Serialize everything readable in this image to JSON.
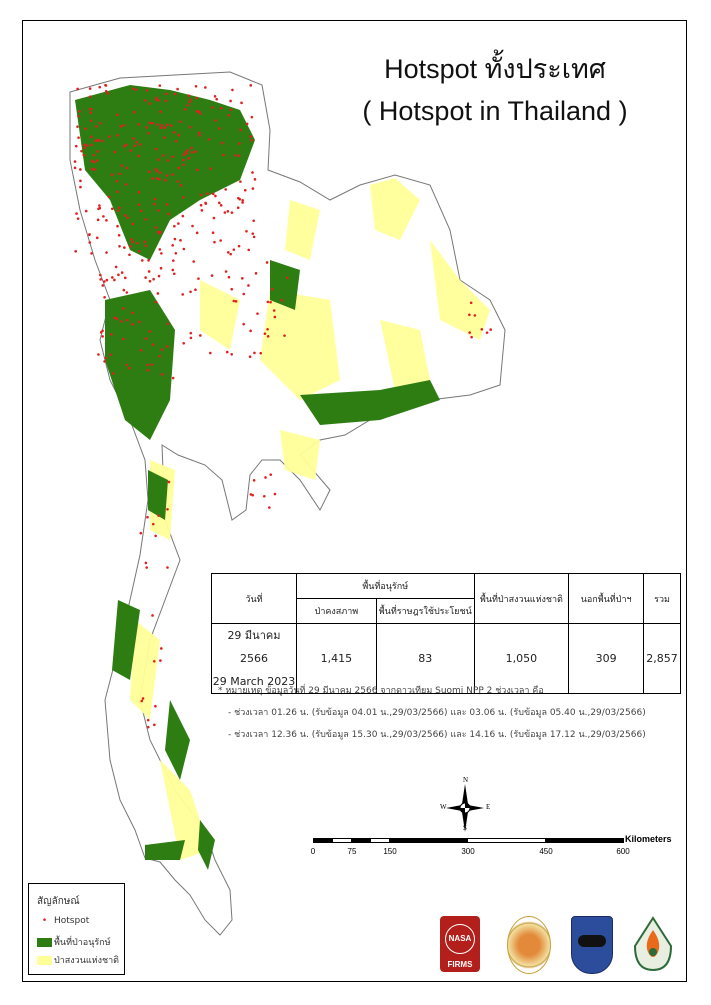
{
  "title": {
    "line1": "Hotspot ทั้งประเทศ",
    "line2": "( Hotspot in Thailand )"
  },
  "table": {
    "headers": {
      "date": "วันที่",
      "conservation": "พื้นที่อนุรักษ์",
      "conservation_forest": "ป่าคงสภาพ",
      "conservation_use": "พื้นที่ราษฎรใช้ประโยชน์",
      "national_forest": "พื้นที่ป่าสงวนแห่งชาติ",
      "outside_forest": "นอกพื้นที่ป่าฯ",
      "total": "รวม"
    },
    "row": {
      "date_th": "29 มีนาคม 2566",
      "date_en": "29 March 2023",
      "conservation_forest": "1,415",
      "conservation_use": "83",
      "national_forest": "1,050",
      "outside_forest": "309",
      "total": "2,857"
    }
  },
  "notes": {
    "line1": "* หมายเหตุ ข้อมูลวันที่ 29 มีนาคม 2566 จากดาวเทียม Suomi NPP 2 ช่วงเวลา คือ",
    "line2": "- ช่วงเวลา 01.26 น. (รับข้อมูล 04.01 น.,29/03/2566) และ 03.06 น. (รับข้อมูล 05.40 น.,29/03/2566)",
    "line3": "- ช่วงเวลา 12.36 น. (รับข้อมูล 15.30 น.,29/03/2566) และ 14.16 น. (รับข้อมูล 17.12 น.,29/03/2566)"
  },
  "legend": {
    "title": "สัญลักษณ์",
    "items": [
      {
        "label": "Hotspot",
        "color": "#e02020"
      },
      {
        "label": "พื้นที่ป่าอนุรักษ์",
        "color": "#2e7d12"
      },
      {
        "label": "ป่าสงวนแห่งชาติ",
        "color": "#ffff99"
      }
    ]
  },
  "scale": {
    "ticks": [
      "0",
      "75",
      "150",
      "300",
      "450",
      "600"
    ],
    "unit": "Kilometers"
  },
  "compass": {
    "n": "N",
    "s": "S",
    "e": "E",
    "w": "W"
  },
  "logos": {
    "firms": "FIRMS",
    "nasa": "NASA"
  },
  "colors": {
    "hotspot": "#e02020",
    "conservation": "#2e7d12",
    "national_forest": "#ffff99",
    "boundary": "#777777"
  }
}
